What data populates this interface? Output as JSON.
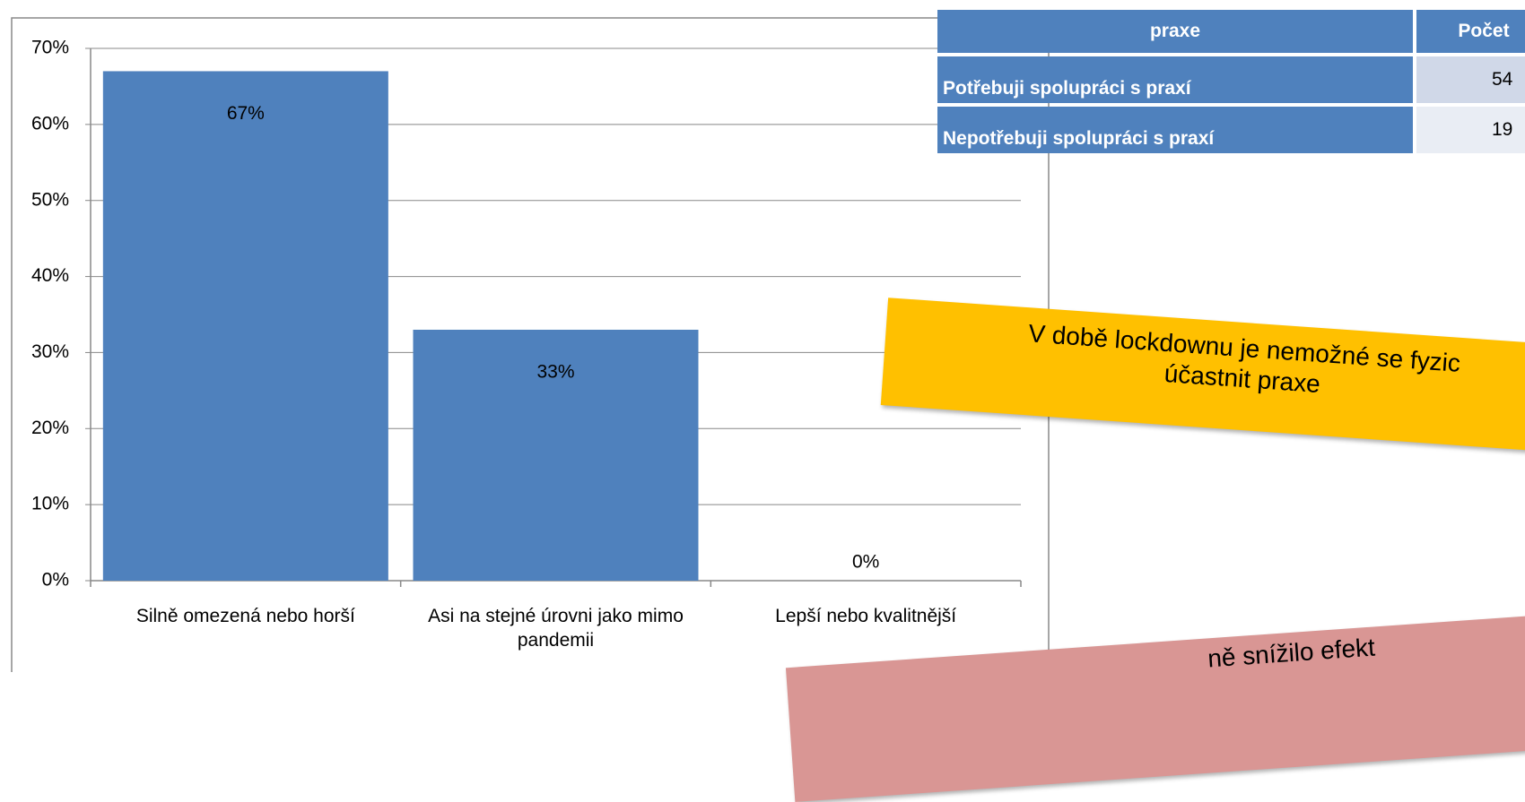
{
  "chart_data": {
    "type": "bar",
    "categories": [
      "Silně omezená nebo horší",
      "Asi na stejné úrovni jako mimo pandemii",
      "Lepší nebo kvalitnější"
    ],
    "values": [
      67,
      33,
      0
    ],
    "value_labels": [
      "67%",
      "33%",
      "0%"
    ],
    "color": "#4f81bd",
    "ylim": [
      0,
      70
    ],
    "yticks": [
      {
        "value": 0,
        "label": "0%"
      },
      {
        "value": 10,
        "label": "10%"
      },
      {
        "value": 20,
        "label": "20%"
      },
      {
        "value": 30,
        "label": "30%"
      },
      {
        "value": 40,
        "label": "40%"
      },
      {
        "value": 50,
        "label": "50%"
      },
      {
        "value": 60,
        "label": "60%"
      },
      {
        "value": 70,
        "label": "70%"
      }
    ],
    "grid": true
  },
  "table": {
    "header": [
      "praxe",
      "Počet"
    ],
    "rows": [
      [
        "Potřebuji spolupráci s praxí",
        54
      ],
      [
        "Nepotřebuji spolupráci s praxí",
        19
      ]
    ]
  },
  "notes": [
    {
      "lines": [
        "V době lockdownu je nemožné se fyzic",
        "účastnit praxe"
      ]
    },
    {
      "lines": [
        "ně snížilo efekt"
      ]
    }
  ]
}
